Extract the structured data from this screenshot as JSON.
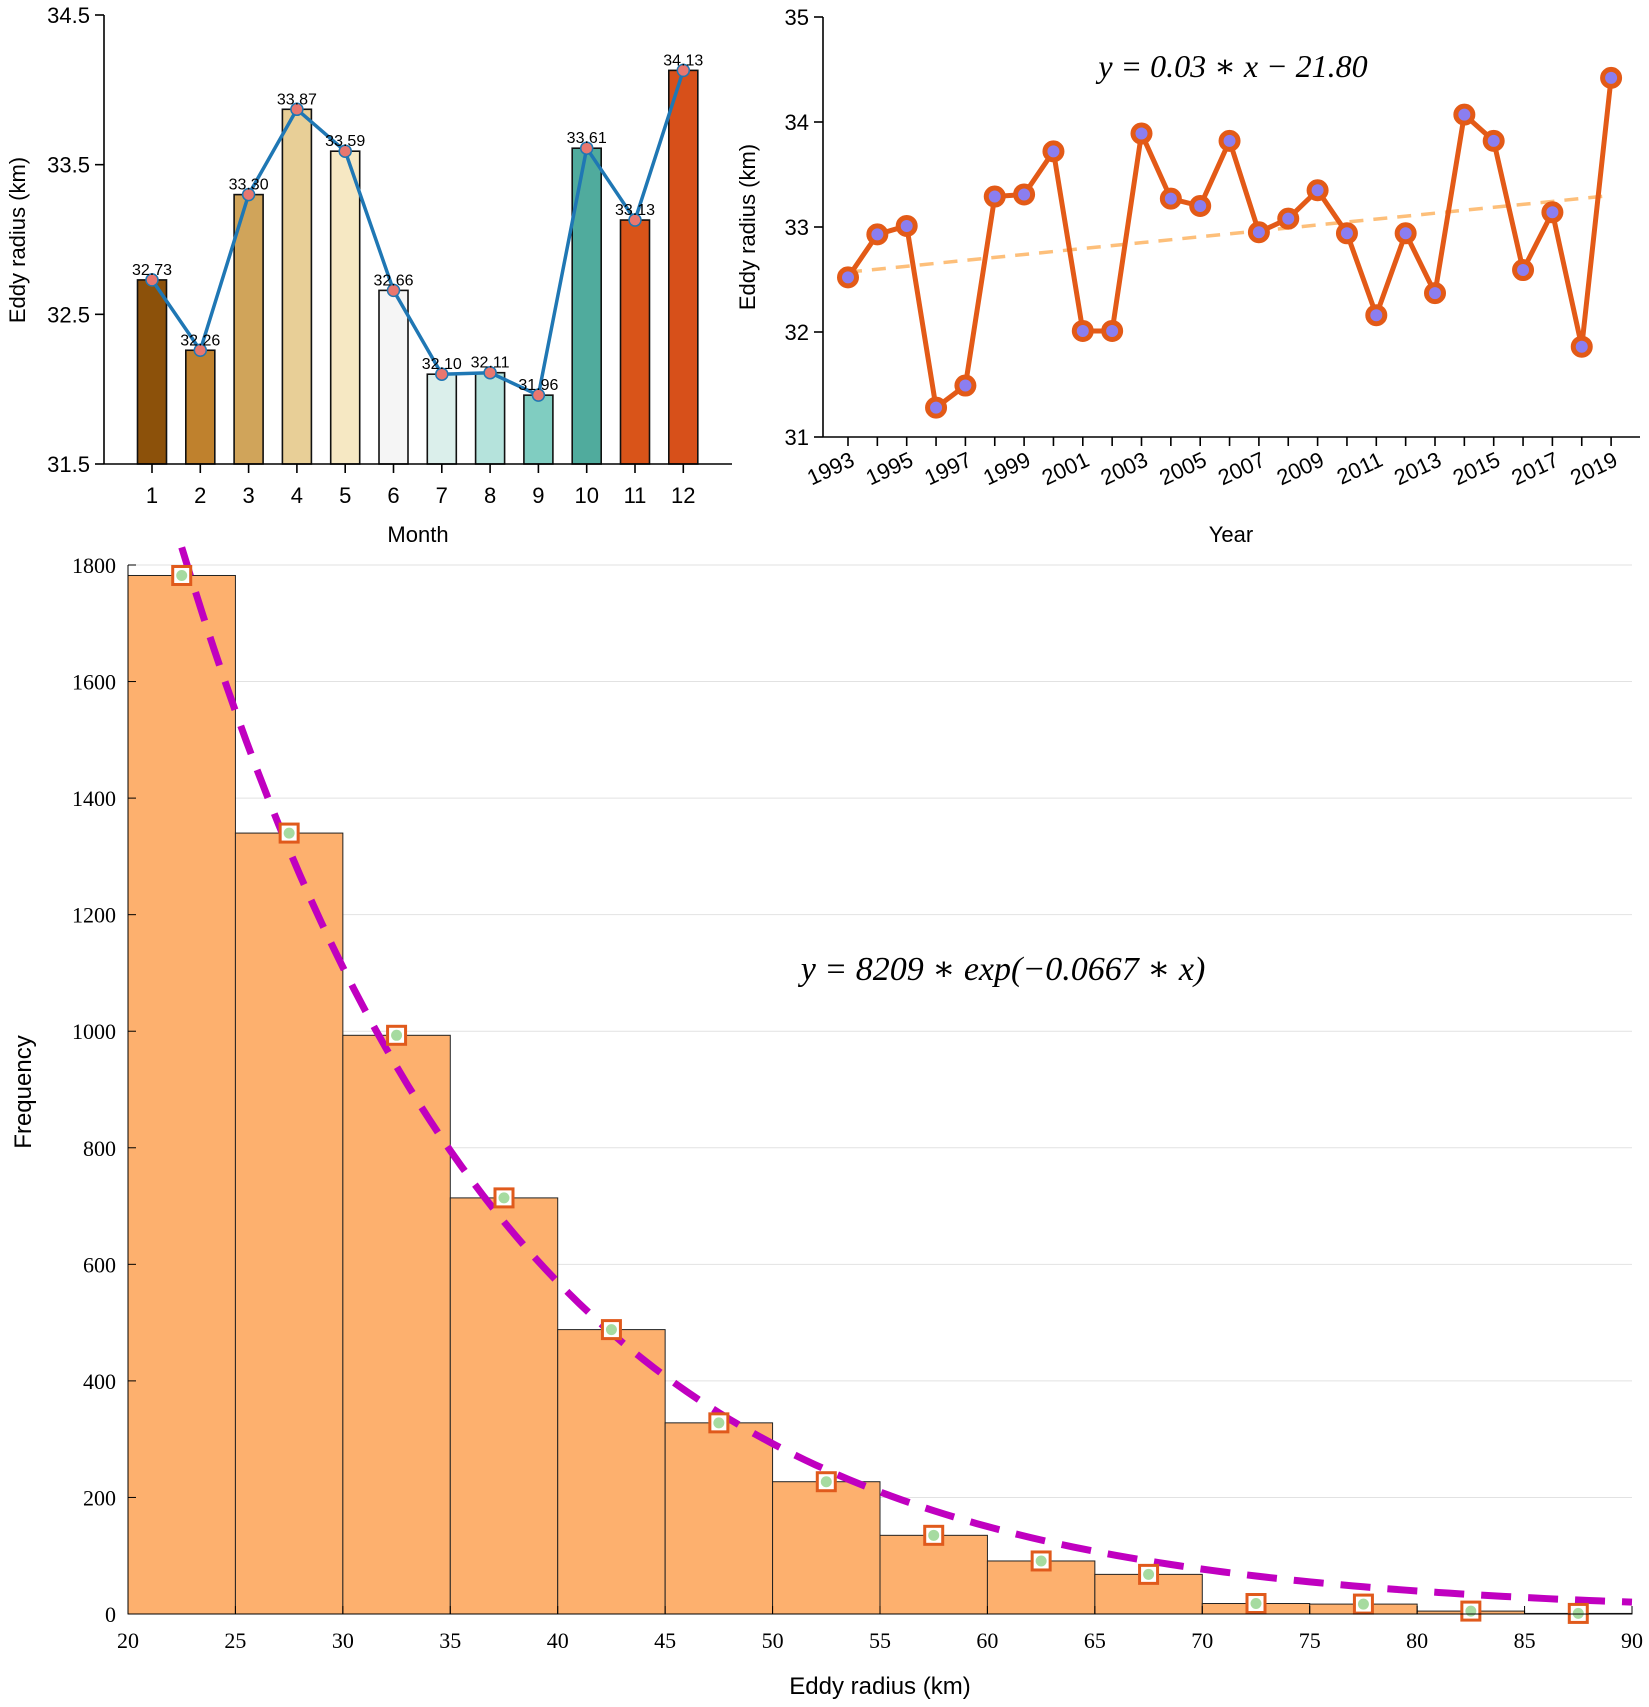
{
  "chart_data": [
    {
      "type": "bar",
      "xlabel": "Month",
      "ylabel": "Eddy radius (km)",
      "ylim": [
        31.5,
        34.5
      ],
      "yticks": [
        "31.5",
        "32.5",
        "33.5",
        "34.5"
      ],
      "categories": [
        "1",
        "2",
        "3",
        "4",
        "5",
        "6",
        "7",
        "8",
        "9",
        "10",
        "11",
        "12"
      ],
      "values": [
        32.73,
        32.26,
        33.3,
        33.87,
        33.59,
        32.66,
        32.1,
        32.11,
        31.96,
        33.61,
        33.13,
        34.13
      ],
      "value_labels": [
        "32.73",
        "32.26",
        "33.30",
        "33.87",
        "33.59",
        "32.66",
        "32.10",
        "32.11",
        "31.96",
        "33.61",
        "33.13",
        "34.13"
      ],
      "bar_colors": [
        "#8c510a",
        "#bf812d",
        "#d0a45a",
        "#e8cf97",
        "#f6e8c3",
        "#f5f5f5",
        "#dbefeb",
        "#b5e3dc",
        "#80cdc1",
        "#50ab9d",
        "#d95419",
        "#d7501a"
      ],
      "line_color": "#1f77b4",
      "marker_color": "#e8776f",
      "grid": false
    },
    {
      "type": "line",
      "xlabel": "Year",
      "ylabel": "Eddy radius (km)",
      "ylim": [
        31,
        35
      ],
      "yticks": [
        "31",
        "32",
        "33",
        "34",
        "35"
      ],
      "xticks": [
        "1993",
        "1995",
        "1997",
        "1999",
        "2001",
        "2003",
        "2005",
        "2007",
        "2009",
        "2011",
        "2013",
        "2015",
        "2017",
        "2019"
      ],
      "x": [
        1993,
        1994,
        1995,
        1996,
        1997,
        1998,
        1999,
        2000,
        2001,
        2002,
        2003,
        2004,
        2005,
        2006,
        2007,
        2008,
        2009,
        2010,
        2011,
        2012,
        2013,
        2014,
        2015,
        2016,
        2017,
        2018,
        2019
      ],
      "y": [
        32.52,
        32.93,
        33.01,
        31.28,
        31.49,
        33.29,
        33.31,
        33.72,
        32.01,
        32.01,
        33.89,
        33.27,
        33.2,
        33.82,
        32.95,
        33.08,
        33.35,
        32.94,
        32.16,
        32.94,
        32.37,
        34.07,
        33.82,
        32.59,
        33.14,
        31.86,
        34.42
      ],
      "fit_equation": "y = 0.03 ∗ x − 21.80",
      "fit": {
        "slope": 0.03,
        "intercept": -21.8
      },
      "line_color": "#e35a17",
      "marker_face": "#8b7ef0",
      "fit_color": "#fdbf7a",
      "grid": false
    },
    {
      "type": "bar",
      "subtype": "histogram",
      "xlabel": "Eddy radius (km)",
      "ylabel": "Frequency",
      "xlim": [
        20,
        90
      ],
      "ylim": [
        0,
        1800
      ],
      "xticks": [
        "20",
        "25",
        "30",
        "35",
        "40",
        "45",
        "50",
        "55",
        "60",
        "65",
        "70",
        "75",
        "80",
        "85",
        "90"
      ],
      "yticks": [
        "0",
        "200",
        "400",
        "600",
        "800",
        "1000",
        "1200",
        "1400",
        "1600",
        "1800"
      ],
      "bin_edges": [
        20,
        25,
        30,
        35,
        40,
        45,
        50,
        55,
        60,
        65,
        70,
        75,
        80,
        85,
        90
      ],
      "values": [
        1782,
        1340,
        993,
        714,
        488,
        328,
        227,
        135,
        91,
        68,
        18,
        17,
        5,
        1
      ],
      "fit_equation": "y = 8209 ∗ exp(−0.0667 ∗ x)",
      "fit": {
        "a": 8209,
        "b": -0.0667
      },
      "bar_color": "#fdb06e",
      "marker_edge": "#e05a1c",
      "marker_face": "#a6dba0",
      "fit_color": "#c000c0",
      "grid": true
    }
  ]
}
